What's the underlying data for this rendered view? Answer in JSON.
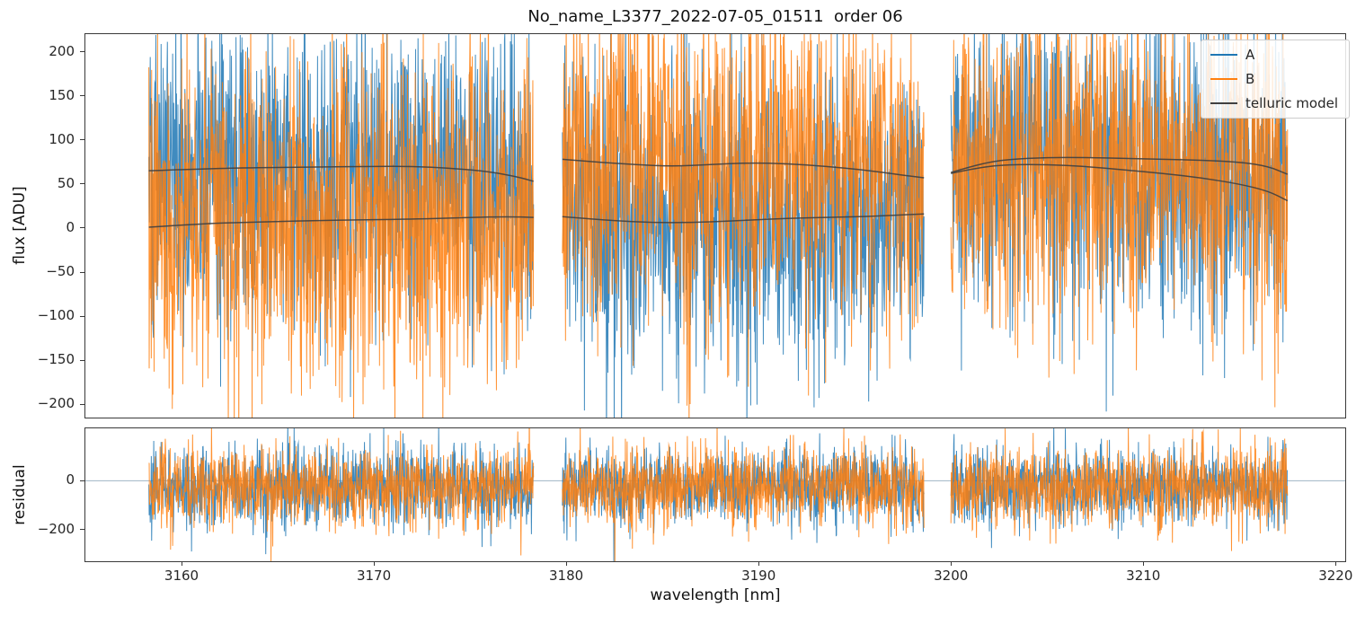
{
  "chart_data": {
    "type": "line",
    "title": "No_name_L3377_2022-07-05_01511  order 06",
    "xlabel": "wavelength [nm]",
    "xlim": [
      3155.0,
      3220.5
    ],
    "x_ticks": [
      3160,
      3170,
      3180,
      3190,
      3200,
      3210,
      3220
    ],
    "legend_items": [
      {
        "label": "A",
        "color": "#1f77b4"
      },
      {
        "label": "B",
        "color": "#ff7f0e"
      },
      {
        "label": "telluric model",
        "color": "#404040"
      }
    ],
    "segments": [
      {
        "x_start": 3158.3,
        "x_end": 3178.3
      },
      {
        "x_start": 3179.8,
        "x_end": 3198.6
      },
      {
        "x_start": 3200.0,
        "x_end": 3217.5
      }
    ],
    "flux_panel": {
      "ylabel": "flux [ADU]",
      "ylim": [
        -215,
        220
      ],
      "y_ticks": [
        200,
        150,
        100,
        50,
        0,
        -50,
        -100,
        -150,
        -200
      ],
      "points_per_nm": 55,
      "series": [
        {
          "name": "A",
          "color": "#1f77b4",
          "std": 85,
          "mean_per_segment": [
            "upper",
            "lower",
            "mid"
          ],
          "seed": 101
        },
        {
          "name": "B",
          "color": "#ff7f0e",
          "std": 92,
          "mean_per_segment": [
            "lower",
            "upper",
            "mid"
          ],
          "seed": 202
        }
      ],
      "telluric_model": {
        "color": "#404040",
        "segments": [
          {
            "upper": [
              [
                3158.3,
                65
              ],
              [
                3162,
                68
              ],
              [
                3166,
                69
              ],
              [
                3170,
                70
              ],
              [
                3172,
                70
              ],
              [
                3174,
                68
              ],
              [
                3176,
                64
              ],
              [
                3177.5,
                58
              ],
              [
                3178.3,
                53
              ]
            ],
            "lower": [
              [
                3158.3,
                1
              ],
              [
                3161,
                5
              ],
              [
                3164,
                7
              ],
              [
                3168,
                9
              ],
              [
                3172,
                10
              ],
              [
                3175,
                12
              ],
              [
                3177,
                13
              ],
              [
                3178.3,
                12
              ]
            ]
          },
          {
            "upper": [
              [
                3179.8,
                78
              ],
              [
                3181.5,
                75
              ],
              [
                3183.5,
                72
              ],
              [
                3185.5,
                70
              ],
              [
                3187.5,
                72
              ],
              [
                3189.5,
                74
              ],
              [
                3191.5,
                73
              ],
              [
                3193.5,
                70
              ],
              [
                3195.5,
                66
              ],
              [
                3197.5,
                60
              ],
              [
                3198.6,
                57
              ]
            ],
            "lower": [
              [
                3179.8,
                13
              ],
              [
                3181.5,
                10
              ],
              [
                3183.5,
                7
              ],
              [
                3185.5,
                6
              ],
              [
                3187.5,
                7
              ],
              [
                3189.5,
                9
              ],
              [
                3191.5,
                11
              ],
              [
                3193.5,
                12
              ],
              [
                3195.5,
                13
              ],
              [
                3197.5,
                15
              ],
              [
                3198.6,
                16
              ]
            ]
          },
          {
            "upper": [
              [
                3200,
                63
              ],
              [
                3201.5,
                73
              ],
              [
                3203,
                78
              ],
              [
                3205,
                80
              ],
              [
                3207,
                80
              ],
              [
                3209,
                79
              ],
              [
                3211,
                78
              ],
              [
                3213,
                77
              ],
              [
                3215,
                75
              ],
              [
                3216.5,
                70
              ],
              [
                3217.5,
                61
              ]
            ],
            "lower": [
              [
                3200,
                62
              ],
              [
                3201.5,
                69
              ],
              [
                3203,
                72
              ],
              [
                3205,
                72
              ],
              [
                3207,
                70
              ],
              [
                3209,
                66
              ],
              [
                3211,
                62
              ],
              [
                3213,
                57
              ],
              [
                3215,
                50
              ],
              [
                3216.5,
                42
              ],
              [
                3217.5,
                31
              ]
            ]
          }
        ]
      }
    },
    "residual_panel": {
      "ylabel": "residual",
      "ylim": [
        -330,
        215
      ],
      "y_ticks": [
        0,
        -200
      ],
      "zero_line_color": "#9fb4c4",
      "points_per_nm": 55,
      "series": [
        {
          "name": "A",
          "color": "#1f77b4",
          "mean": -25,
          "std": 80,
          "seed": 303
        },
        {
          "name": "B",
          "color": "#ff7f0e",
          "mean": -25,
          "std": 85,
          "seed": 404
        }
      ]
    }
  }
}
